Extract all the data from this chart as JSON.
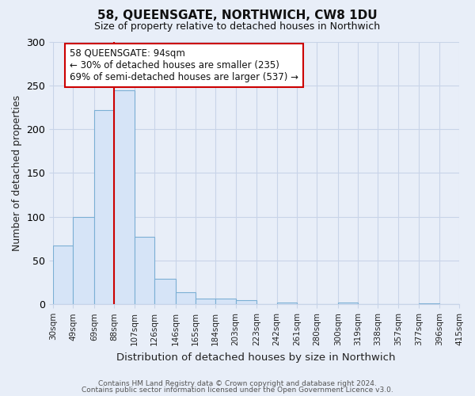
{
  "title": "58, QUEENSGATE, NORTHWICH, CW8 1DU",
  "subtitle": "Size of property relative to detached houses in Northwich",
  "xlabel": "Distribution of detached houses by size in Northwich",
  "ylabel": "Number of detached properties",
  "footer_lines": [
    "Contains HM Land Registry data © Crown copyright and database right 2024.",
    "Contains public sector information licensed under the Open Government Licence v3.0."
  ],
  "bin_labels": [
    "30sqm",
    "49sqm",
    "69sqm",
    "88sqm",
    "107sqm",
    "126sqm",
    "146sqm",
    "165sqm",
    "184sqm",
    "203sqm",
    "223sqm",
    "242sqm",
    "261sqm",
    "280sqm",
    "300sqm",
    "319sqm",
    "338sqm",
    "357sqm",
    "377sqm",
    "396sqm",
    "415sqm"
  ],
  "bar_values": [
    67,
    100,
    222,
    244,
    77,
    29,
    14,
    7,
    7,
    5,
    0,
    2,
    0,
    0,
    2,
    0,
    0,
    0,
    1,
    0
  ],
  "bar_color": "#d6e4f7",
  "bar_edge_color": "#7bafd4",
  "ylim": [
    0,
    300
  ],
  "yticks": [
    0,
    50,
    100,
    150,
    200,
    250,
    300
  ],
  "vline_x_index": 3,
  "vline_color": "#cc0000",
  "annotation_title": "58 QUEENSGATE: 94sqm",
  "annotation_line1": "← 30% of detached houses are smaller (235)",
  "annotation_line2": "69% of semi-detached houses are larger (537) →",
  "annotation_box_color": "#ffffff",
  "annotation_box_edge": "#cc0000",
  "bin_edges": [
    30,
    49,
    69,
    88,
    107,
    126,
    146,
    165,
    184,
    203,
    223,
    242,
    261,
    280,
    300,
    319,
    338,
    357,
    377,
    396,
    415
  ],
  "background_color": "#e8eef8",
  "grid_color": "#c8d4e8",
  "spine_color": "#c8d4e8"
}
